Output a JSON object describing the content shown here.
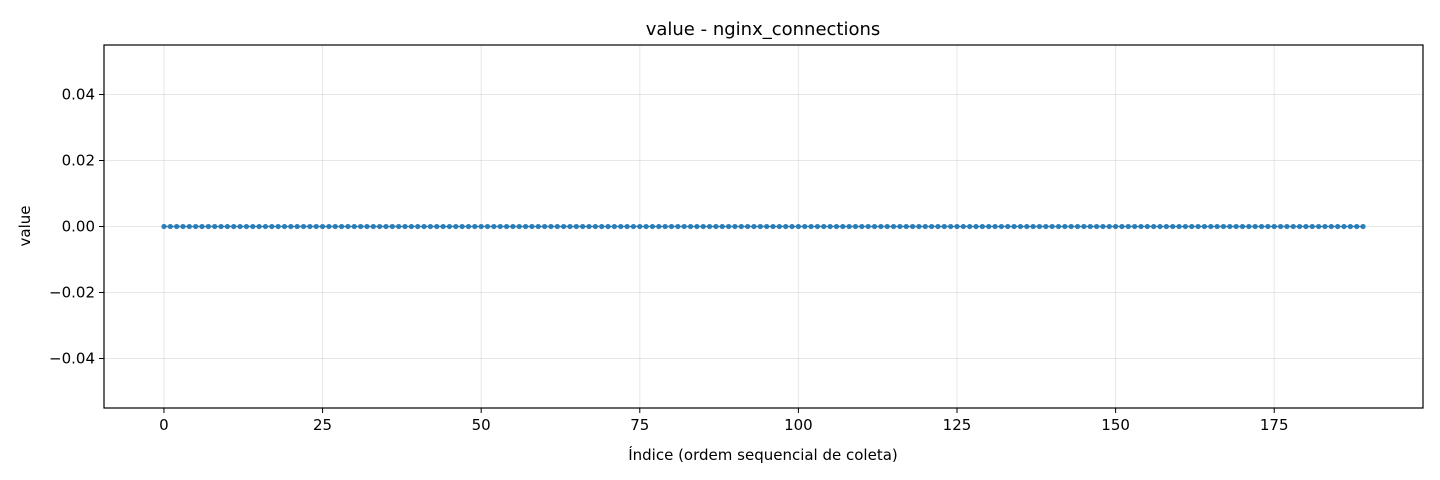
{
  "chart_data": {
    "type": "line",
    "title": "value - nginx_connections",
    "xlabel": "Índice (ordem sequencial de coleta)",
    "ylabel": "value",
    "xlim": [
      -9.45,
      198.45
    ],
    "ylim": [
      -0.055,
      0.055
    ],
    "xticks": [
      0,
      25,
      50,
      75,
      100,
      125,
      150,
      175
    ],
    "xtick_labels": [
      "0",
      "25",
      "50",
      "75",
      "100",
      "125",
      "150",
      "175"
    ],
    "yticks": [
      -0.04,
      -0.02,
      0.0,
      0.02,
      0.04
    ],
    "ytick_labels": [
      "−0.04",
      "−0.02",
      "0.00",
      "0.02",
      "0.04"
    ],
    "grid": true,
    "marker": "circle",
    "series": [
      {
        "color": "#1f77b4",
        "x_start": 0,
        "x_end": 189,
        "x_step": 1,
        "y_constant": 0.0
      }
    ]
  }
}
